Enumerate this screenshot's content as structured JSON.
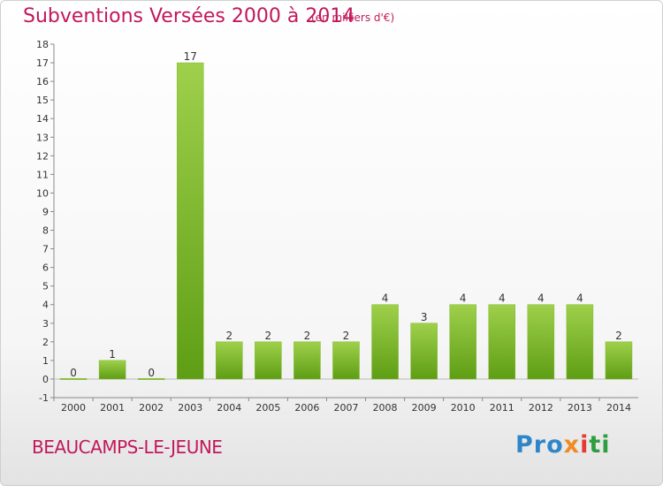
{
  "header": {
    "title": "Subventions Versées 2000 à 2014",
    "subtitle": "(en milliers d'€)"
  },
  "footer": {
    "commune": "BEAUCAMPS-LE-JEUNE",
    "brand_parts": [
      "Pro",
      "x",
      "i",
      "ti"
    ]
  },
  "colors": {
    "title": "#c2185b",
    "bar_light": "#9fd04b",
    "bar_dark": "#5e9e14",
    "axis": "#888888"
  },
  "chart_data": {
    "type": "bar",
    "title": "Subventions Versées 2000 à 2014",
    "subtitle": "(en milliers d'€)",
    "xlabel": "",
    "ylabel": "",
    "categories": [
      "2000",
      "2001",
      "2002",
      "2003",
      "2004",
      "2005",
      "2006",
      "2007",
      "2008",
      "2009",
      "2010",
      "2011",
      "2012",
      "2013",
      "2014"
    ],
    "values": [
      0,
      1,
      0,
      17,
      2,
      2,
      2,
      2,
      4,
      3,
      4,
      4,
      4,
      4,
      2
    ],
    "ylim": [
      -1,
      18
    ],
    "yticks": [
      "-1",
      "0",
      "1",
      "2",
      "3",
      "4",
      "5",
      "6",
      "7",
      "8",
      "9",
      "10",
      "11",
      "12",
      "13",
      "14",
      "15",
      "16",
      "17",
      "18"
    ],
    "grid": false,
    "legend": "none"
  }
}
